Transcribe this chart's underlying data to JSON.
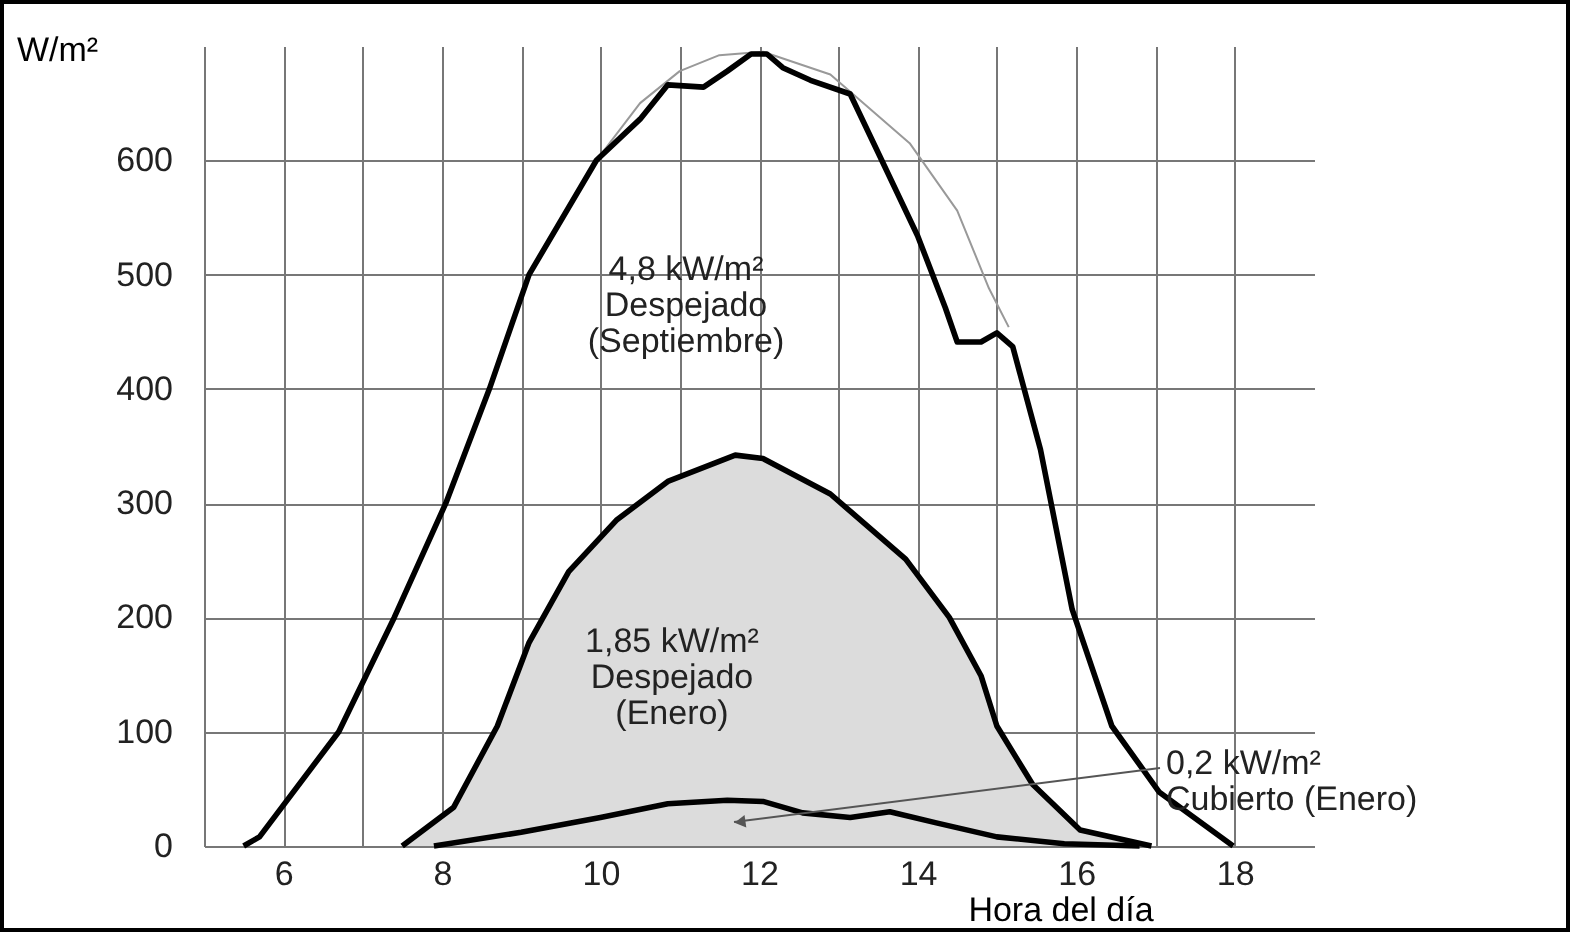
{
  "chart_data": {
    "type": "line",
    "xlabel": "Hora del día",
    "ylabel": "W/m²",
    "xlim": [
      5,
      19
    ],
    "ylim": [
      0,
      700
    ],
    "xticks": [
      6,
      {
        "value": 7,
        "label": null
      },
      8,
      {
        "value": 9,
        "label": null
      },
      10,
      {
        "value": 11,
        "label": null
      },
      12,
      {
        "value": 13,
        "label": null
      },
      14,
      {
        "value": 15,
        "label": null
      },
      16,
      {
        "value": 17,
        "label": null
      },
      18
    ],
    "yticks": [
      0,
      100,
      200,
      300,
      400,
      500,
      600
    ],
    "grid": true,
    "series": [
      {
        "type": "area",
        "color": "#dcdcdc",
        "x": [
          7.5,
          8.15,
          8.7,
          9.1,
          9.6,
          10.2,
          10.85,
          11.7,
          12.05,
          12.9,
          13.85,
          14.4,
          14.8,
          15.0,
          15.45,
          16.05,
          16.95
        ],
        "values": [
          0,
          34,
          105,
          178,
          240,
          285,
          319,
          342,
          339,
          308,
          251,
          200,
          149,
          105,
          54,
          14,
          0
        ]
      },
      {
        "color": "#999999",
        "x": [
          9.95,
          10.5,
          11.0,
          11.5,
          12.05,
          12.9,
          13.9,
          14.5,
          14.9,
          15.15
        ],
        "values": [
          600,
          650,
          678,
          692,
          695,
          675,
          615,
          556,
          488,
          454
        ]
      },
      {
        "color": "#000000",
        "x": [
          5.5,
          5.7,
          6.7,
          7.4,
          8.05,
          8.6,
          9.1,
          9.95,
          10.5,
          10.85,
          11.3,
          11.6,
          11.9,
          12.1,
          12.3,
          12.65,
          13.15,
          13.5,
          14.0,
          14.35,
          14.5,
          14.8,
          15.0,
          15.2,
          15.55,
          15.95,
          16.45,
          17.05,
          17.98
        ],
        "values": [
          0,
          8,
          100,
          200,
          300,
          400,
          500,
          600,
          636,
          666,
          664,
          678,
          693,
          693,
          681,
          670,
          658,
          607,
          534,
          471,
          441,
          441,
          449,
          437,
          347,
          207,
          105,
          47,
          0
        ]
      },
      {
        "color": "#000000",
        "x": [
          7.9,
          9.0,
          10.0,
          10.85,
          11.6,
          12.05,
          12.55,
          13.15,
          13.65,
          14.25,
          15.0,
          15.85,
          16.8
        ],
        "values": [
          0,
          12,
          25,
          37,
          40,
          39,
          29,
          25,
          30,
          20,
          8,
          2,
          0
        ]
      }
    ],
    "annotations": [
      "4,8 kW/m²\nDespejado\n(Septiembre)",
      "1,85 kW/m²\nDespejado\n(Enero)",
      "0,2 kW/m²\nCubierto (Enero)"
    ]
  }
}
